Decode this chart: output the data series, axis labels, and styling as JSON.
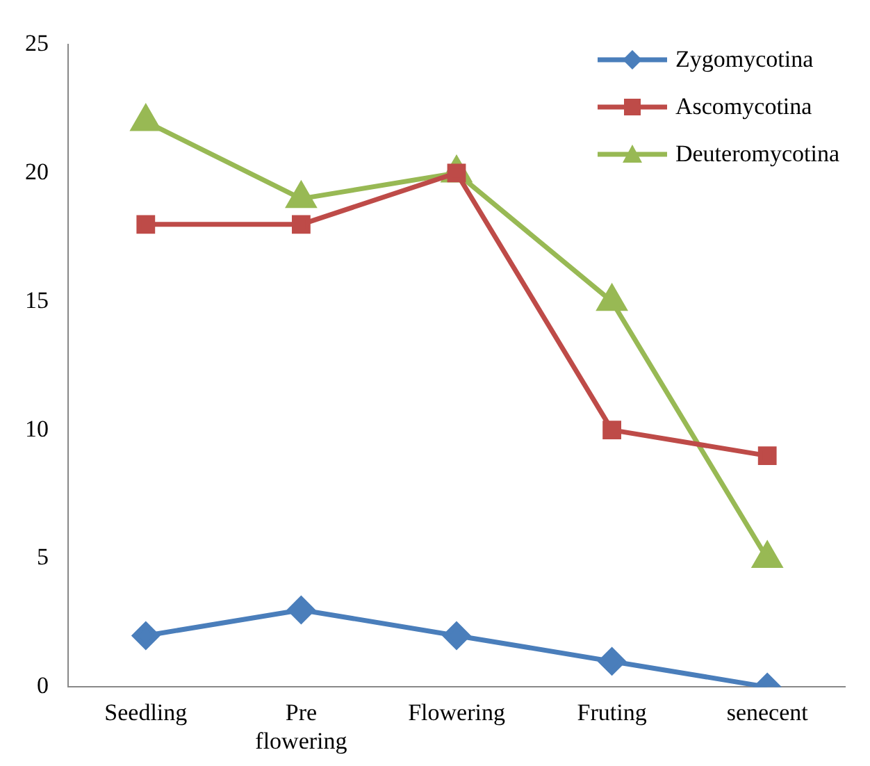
{
  "chart_data": {
    "type": "line",
    "categories": [
      "Seedling",
      "Pre flowering",
      "Flowering",
      "Fruting",
      "senecent"
    ],
    "series": [
      {
        "name": "Zygomycotina",
        "color": "#4a7ebb",
        "marker": "diamond",
        "values": [
          2,
          3,
          2,
          1,
          0
        ]
      },
      {
        "name": "Ascomycotina",
        "color": "#be4b48",
        "marker": "square",
        "values": [
          18,
          18,
          20,
          10,
          9
        ]
      },
      {
        "name": "Deuteromycotina",
        "color": "#98b954",
        "marker": "triangle",
        "values": [
          22,
          19,
          20,
          15,
          5
        ]
      }
    ],
    "ylim": [
      0,
      25
    ],
    "yticks": [
      0,
      5,
      10,
      15,
      20,
      25
    ],
    "grid": false,
    "legend": "top right",
    "line_style": "solid"
  }
}
